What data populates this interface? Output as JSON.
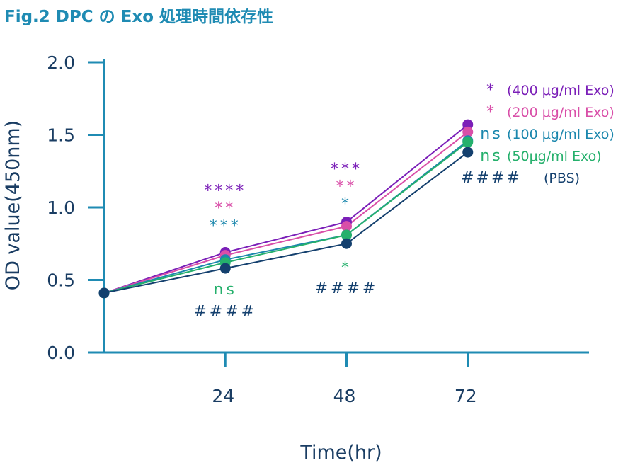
{
  "title": "Fig.2  DPC の Exo 処理時間依存性",
  "chart_data": {
    "type": "line",
    "title": "Fig.2  DPC の Exo 処理時間依存性",
    "xlabel": "Time(hr)",
    "ylabel": "OD value(450nm)",
    "x_tick_labels": [
      "24",
      "48",
      "72"
    ],
    "y_tick_labels": [
      "0.0",
      "0.5",
      "1.0",
      "1.5",
      "2.0"
    ],
    "ylim": [
      0,
      2.0
    ],
    "y_ticks": [
      0,
      0.5,
      1.0,
      1.5,
      2.0
    ],
    "x": [
      0,
      24,
      48,
      72
    ],
    "xlim": [
      0,
      96
    ],
    "grid": false,
    "legend_position": "top-right",
    "series": [
      {
        "name": "(400 μg/ml Exo)",
        "mark": "*",
        "color": "#7b1fb8",
        "values": [
          0.41,
          0.69,
          0.9,
          1.57
        ]
      },
      {
        "name": "(200 μg/ml Exo)",
        "mark": "*",
        "color": "#d94fa8",
        "values": [
          0.41,
          0.67,
          0.87,
          1.52
        ]
      },
      {
        "name": "(100 μg/ml Exo)",
        "mark": "ns",
        "color": "#1b87ad",
        "values": [
          0.41,
          0.64,
          0.81,
          1.46
        ]
      },
      {
        "name": "(50μg/ml Exo)",
        "mark": "ns",
        "color": "#25b06c",
        "values": [
          0.41,
          0.62,
          0.81,
          1.45
        ]
      },
      {
        "name": "(PBS)",
        "mark": "####",
        "color": "#14406e",
        "values": [
          0.41,
          0.58,
          0.75,
          1.38
        ]
      }
    ],
    "annotations": [
      {
        "x": 24,
        "y": 1.08,
        "text": "****",
        "color": "#7b1fb8"
      },
      {
        "x": 24,
        "y": 0.96,
        "text": "**",
        "color": "#d94fa8"
      },
      {
        "x": 24,
        "y": 0.84,
        "text": "***",
        "color": "#1b87ad"
      },
      {
        "x": 24,
        "y": 0.4,
        "text": "ns",
        "color": "#25b06c"
      },
      {
        "x": 24,
        "y": 0.25,
        "text": "####",
        "color": "#14406e"
      },
      {
        "x": 48,
        "y": 1.23,
        "text": "***",
        "color": "#7b1fb8"
      },
      {
        "x": 48,
        "y": 1.11,
        "text": "**",
        "color": "#d94fa8"
      },
      {
        "x": 48,
        "y": 0.99,
        "text": "*",
        "color": "#1b87ad"
      },
      {
        "x": 48,
        "y": 0.55,
        "text": "*",
        "color": "#25b06c"
      },
      {
        "x": 48,
        "y": 0.41,
        "text": "####",
        "color": "#14406e"
      }
    ]
  }
}
